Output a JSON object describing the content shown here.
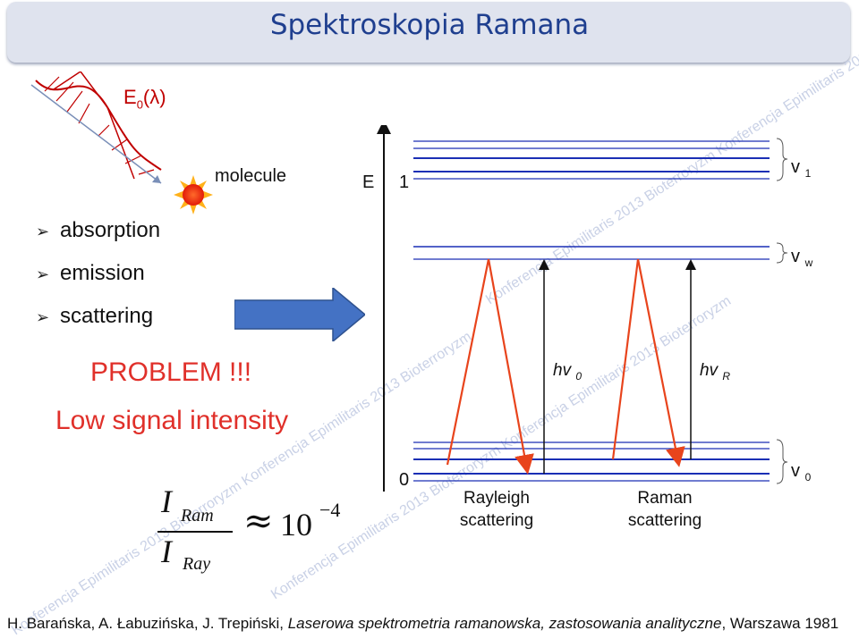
{
  "title": "Spektroskopia Ramana",
  "watermark": "Konferencja Epimilitaris 2013 Bioterroryzm Konferencja Epimilitaris 2013 Bioterroryzm",
  "wave_label": {
    "main": "E",
    "sub": "0",
    "rest": "(λ)"
  },
  "molecule_label": "molecule",
  "bullets": [
    "absorption",
    "emission",
    "scattering"
  ],
  "problem": "PROBLEM !!!",
  "low_signal": "Low signal intensity",
  "formula": {
    "numerator_symbol": "I",
    "numerator_sub": "Ram",
    "denominator_symbol": "I",
    "denominator_sub": "Ray",
    "approx": "≈",
    "base": "10",
    "exponent": "−4"
  },
  "diagram": {
    "energy_axis": "E",
    "level_1": "1",
    "level_0": "0",
    "hv0": {
      "main": "hv",
      "sub": "0"
    },
    "hvR": {
      "main": "hv",
      "sub": "R"
    },
    "rayleigh": [
      "Rayleigh",
      "scattering"
    ],
    "raman": [
      "Raman",
      "scattering"
    ],
    "v1": {
      "main": "v",
      "sub": "1"
    },
    "vw": {
      "main": "v",
      "sub": "w"
    },
    "v0": {
      "main": "v",
      "sub": "0"
    }
  },
  "citation": {
    "authors": "H. Barańska, A. Łabuzińska, J. Trepiński,",
    "book": "Laserowa spektrometria ramanowska, zastosowania analityczne",
    "rest": ", Warszawa 1981"
  },
  "colors": {
    "title_blue": "#1f3f8f",
    "problem_red": "#e0302a",
    "wave_red": "#c00000",
    "level_blue": "#1a2fb5",
    "arrow_blue": "#4472c4",
    "scatter_orange": "#e8441c"
  }
}
